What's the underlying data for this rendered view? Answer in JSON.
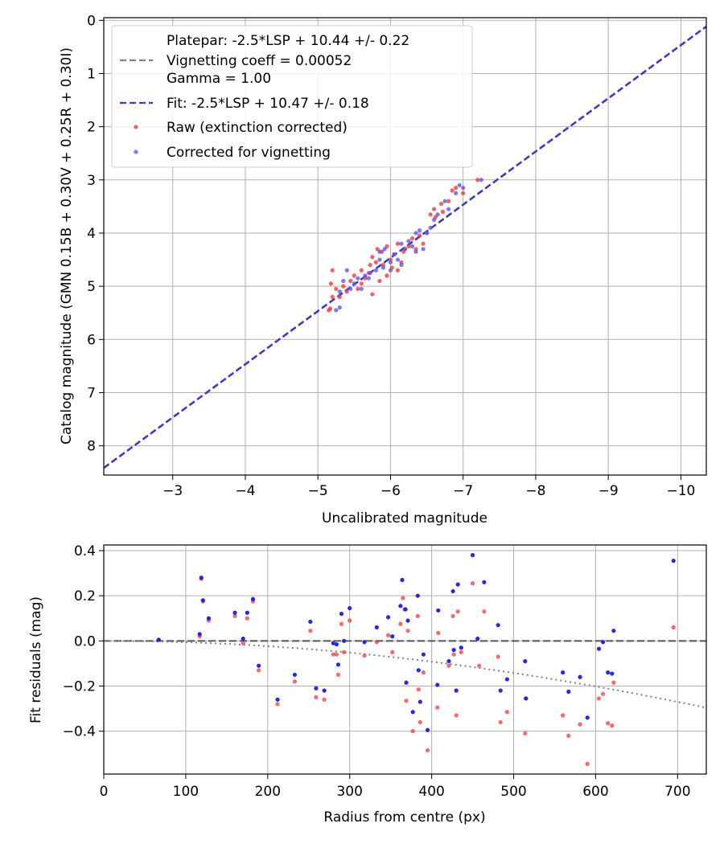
{
  "chart_data": [
    {
      "type": "scatter",
      "xlabel": "Uncalibrated magnitude",
      "ylabel": "Catalog magnitude (GMN 0.15B + 0.30V + 0.25R + 0.30I)",
      "xlim": [
        -2.05,
        -10.35
      ],
      "ylim": [
        -0.05,
        8.55
      ],
      "x_inverted": true,
      "y_inverted": true,
      "grid": true,
      "legend_position": "top-left",
      "xticks": [
        -3,
        -4,
        -5,
        -6,
        -7,
        -8,
        -9,
        -10
      ],
      "xtick_labels": [
        "−3",
        "−4",
        "−5",
        "−6",
        "−7",
        "−8",
        "−9",
        "−10"
      ],
      "yticks": [
        0,
        1,
        2,
        3,
        4,
        5,
        6,
        7,
        8
      ],
      "ytick_labels": [
        "0",
        "1",
        "2",
        "3",
        "4",
        "5",
        "6",
        "7",
        "8"
      ],
      "legend": [
        {
          "label": "Platepar: -2.5*LSP + 10.44 +/- 0.22",
          "style": "none"
        },
        {
          "label": "Vignetting coeff = 0.00052",
          "style": "dashed",
          "color": "#808080"
        },
        {
          "label": "Gamma = 1.00",
          "style": "none"
        },
        {
          "label": "Fit: -2.5*LSP + 10.47 +/- 0.18",
          "style": "dashed",
          "color": "#3333ff"
        },
        {
          "label": "Raw (extinction corrected)",
          "style": "marker",
          "color": "#ff3333"
        },
        {
          "label": "Corrected for vignetting",
          "style": "marker",
          "color": "#5555ff"
        }
      ],
      "lines": [
        {
          "name": "Platepar",
          "x": [
            -2.05,
            -10.35
          ],
          "y": [
            8.41,
            0.11
          ],
          "color": "#808080",
          "dash": true
        },
        {
          "name": "Fit",
          "x": [
            -2.05,
            -10.35
          ],
          "y": [
            8.42,
            0.12
          ],
          "color": "#2222ee",
          "dash": true
        }
      ],
      "series": [
        {
          "name": "Raw (extinction corrected)",
          "color": "#ff3333",
          "points": [
            [
              -5.15,
              5.45
            ],
            [
              -5.17,
              5.42
            ],
            [
              -5.2,
              5.2
            ],
            [
              -5.18,
              4.95
            ],
            [
              -5.2,
              4.7
            ],
            [
              -5.25,
              5.05
            ],
            [
              -5.3,
              5.2
            ],
            [
              -5.35,
              5.0
            ],
            [
              -5.4,
              5.1
            ],
            [
              -5.45,
              4.9
            ],
            [
              -5.5,
              4.8
            ],
            [
              -5.55,
              5.05
            ],
            [
              -5.6,
              4.95
            ],
            [
              -5.6,
              4.7
            ],
            [
              -5.65,
              4.85
            ],
            [
              -5.7,
              4.75
            ],
            [
              -5.72,
              4.6
            ],
            [
              -5.75,
              4.45
            ],
            [
              -5.75,
              5.15
            ],
            [
              -5.8,
              4.55
            ],
            [
              -5.82,
              4.3
            ],
            [
              -5.85,
              4.9
            ],
            [
              -5.88,
              4.35
            ],
            [
              -5.9,
              4.6
            ],
            [
              -5.95,
              4.25
            ],
            [
              -5.95,
              4.8
            ],
            [
              -6.0,
              4.5
            ],
            [
              -6.02,
              4.65
            ],
            [
              -6.05,
              4.4
            ],
            [
              -6.1,
              4.7
            ],
            [
              -6.1,
              4.2
            ],
            [
              -6.15,
              4.55
            ],
            [
              -6.18,
              4.35
            ],
            [
              -6.2,
              4.3
            ],
            [
              -6.25,
              4.25
            ],
            [
              -6.3,
              4.1
            ],
            [
              -6.35,
              4.3
            ],
            [
              -6.4,
              4.05
            ],
            [
              -6.45,
              4.2
            ],
            [
              -6.5,
              4.0
            ],
            [
              -6.55,
              3.65
            ],
            [
              -6.6,
              3.55
            ],
            [
              -6.62,
              3.7
            ],
            [
              -6.7,
              3.45
            ],
            [
              -6.72,
              3.6
            ],
            [
              -6.8,
              3.4
            ],
            [
              -6.85,
              3.2
            ],
            [
              -6.9,
              3.15
            ],
            [
              -7.0,
              3.25
            ],
            [
              -7.2,
              3.0
            ]
          ]
        },
        {
          "name": "Corrected for vignetting",
          "color": "#5555ff",
          "points": [
            [
              -5.25,
              5.45
            ],
            [
              -5.3,
              5.4
            ],
            [
              -5.3,
              5.1
            ],
            [
              -5.35,
              4.9
            ],
            [
              -5.4,
              4.7
            ],
            [
              -5.45,
              5.05
            ],
            [
              -5.5,
              4.95
            ],
            [
              -5.55,
              4.85
            ],
            [
              -5.6,
              5.05
            ],
            [
              -5.65,
              4.8
            ],
            [
              -5.7,
              4.85
            ],
            [
              -5.72,
              4.75
            ],
            [
              -5.8,
              4.7
            ],
            [
              -5.85,
              4.5
            ],
            [
              -5.85,
              4.35
            ],
            [
              -5.9,
              4.65
            ],
            [
              -5.92,
              4.3
            ],
            [
              -6.0,
              4.55
            ],
            [
              -6.0,
              4.7
            ],
            [
              -6.05,
              4.4
            ],
            [
              -6.1,
              4.5
            ],
            [
              -6.15,
              4.2
            ],
            [
              -6.15,
              4.6
            ],
            [
              -6.2,
              4.3
            ],
            [
              -6.25,
              4.15
            ],
            [
              -6.3,
              4.25
            ],
            [
              -6.35,
              4.35
            ],
            [
              -6.35,
              4.0
            ],
            [
              -6.4,
              3.95
            ],
            [
              -6.45,
              4.3
            ],
            [
              -6.5,
              4.0
            ],
            [
              -6.55,
              3.9
            ],
            [
              -6.6,
              3.75
            ],
            [
              -6.65,
              3.65
            ],
            [
              -6.75,
              3.4
            ],
            [
              -6.8,
              3.55
            ],
            [
              -6.9,
              3.25
            ],
            [
              -6.95,
              3.1
            ],
            [
              -7.0,
              3.15
            ],
            [
              -7.25,
              3.0
            ]
          ]
        }
      ]
    },
    {
      "type": "scatter",
      "xlabel": "Radius from centre (px)",
      "ylabel": "Fit residuals (mag)",
      "xlim": [
        0,
        735
      ],
      "ylim": [
        -0.59,
        0.425
      ],
      "grid": true,
      "xticks": [
        0,
        100,
        200,
        300,
        400,
        500,
        600,
        700
      ],
      "xtick_labels": [
        "0",
        "100",
        "200",
        "300",
        "400",
        "500",
        "600",
        "700"
      ],
      "yticks": [
        -0.4,
        -0.2,
        0.0,
        0.2,
        0.4
      ],
      "ytick_labels": [
        "−0.4",
        "−0.2",
        "0.0",
        "0.2",
        "0.4"
      ],
      "reference_lines": [
        {
          "name": "zero",
          "y": 0.0,
          "color": "#555555",
          "dash": "dashed"
        },
        {
          "name": "vignetting",
          "vignetting_coeff": 0.00052,
          "color": "#808080",
          "dash": "dotted"
        }
      ],
      "series": [
        {
          "name": "Raw (extinction corrected)",
          "color": "#ff3333",
          "points": [
            [
              67,
              0.005
            ],
            [
              117,
              0.02
            ],
            [
              119,
              0.275
            ],
            [
              121,
              0.175
            ],
            [
              128,
              0.09
            ],
            [
              160,
              0.11
            ],
            [
              170,
              -0.01
            ],
            [
              175,
              0.1
            ],
            [
              182,
              0.175
            ],
            [
              189,
              -0.13
            ],
            [
              212,
              -0.28
            ],
            [
              233,
              -0.18
            ],
            [
              252,
              0.045
            ],
            [
              259,
              -0.25
            ],
            [
              269,
              -0.26
            ],
            [
              280,
              -0.06
            ],
            [
              284,
              -0.06
            ],
            [
              286,
              -0.15
            ],
            [
              290,
              0.075
            ],
            [
              293,
              -0.05
            ],
            [
              300,
              0.09
            ],
            [
              318,
              -0.065
            ],
            [
              333,
              -0.005
            ],
            [
              347,
              0.025
            ],
            [
              352,
              -0.05
            ],
            [
              362,
              0.075
            ],
            [
              365,
              0.19
            ],
            [
              367,
              0.14
            ],
            [
              369,
              -0.265
            ],
            [
              371,
              0.045
            ],
            [
              377,
              -0.4
            ],
            [
              383,
              0.11
            ],
            [
              384,
              -0.215
            ],
            [
              386,
              -0.36
            ],
            [
              390,
              -0.14
            ],
            [
              395,
              -0.485
            ],
            [
              407,
              -0.295
            ],
            [
              408,
              0.035
            ],
            [
              421,
              -0.11
            ],
            [
              426,
              0.11
            ],
            [
              427,
              -0.06
            ],
            [
              430,
              -0.33
            ],
            [
              432,
              0.13
            ],
            [
              436,
              -0.05
            ],
            [
              450,
              0.255
            ],
            [
              458,
              -0.11
            ],
            [
              464,
              0.13
            ],
            [
              481,
              -0.07
            ],
            [
              484,
              -0.36
            ],
            [
              492,
              -0.315
            ],
            [
              514,
              -0.41
            ],
            [
              515,
              -0.255
            ],
            [
              560,
              -0.33
            ],
            [
              567,
              -0.42
            ],
            [
              581,
              -0.37
            ],
            [
              590,
              -0.545
            ],
            [
              604,
              -0.255
            ],
            [
              609,
              -0.235
            ],
            [
              615,
              -0.365
            ],
            [
              620,
              -0.375
            ],
            [
              622,
              -0.185
            ],
            [
              695,
              0.06
            ]
          ]
        },
        {
          "name": "Corrected for vignetting",
          "color": "#1a1aee",
          "points": [
            [
              67,
              0.005
            ],
            [
              117,
              0.03
            ],
            [
              119,
              0.28
            ],
            [
              121,
              0.18
            ],
            [
              128,
              0.1
            ],
            [
              160,
              0.125
            ],
            [
              170,
              0.01
            ],
            [
              175,
              0.125
            ],
            [
              182,
              0.185
            ],
            [
              189,
              -0.11
            ],
            [
              212,
              -0.26
            ],
            [
              233,
              -0.15
            ],
            [
              252,
              0.085
            ],
            [
              259,
              -0.21
            ],
            [
              269,
              -0.22
            ],
            [
              280,
              -0.01
            ],
            [
              284,
              -0.015
            ],
            [
              286,
              -0.105
            ],
            [
              290,
              0.12
            ],
            [
              293,
              0.0
            ],
            [
              300,
              0.145
            ],
            [
              318,
              -0.005
            ],
            [
              333,
              0.06
            ],
            [
              347,
              0.105
            ],
            [
              352,
              0.02
            ],
            [
              362,
              0.155
            ],
            [
              364,
              0.27
            ],
            [
              368,
              0.14
            ],
            [
              369,
              -0.185
            ],
            [
              371,
              0.09
            ],
            [
              377,
              -0.315
            ],
            [
              383,
              0.2
            ],
            [
              384,
              -0.13
            ],
            [
              386,
              -0.27
            ],
            [
              390,
              -0.06
            ],
            [
              395,
              -0.395
            ],
            [
              407,
              -0.195
            ],
            [
              408,
              0.135
            ],
            [
              421,
              -0.09
            ],
            [
              426,
              0.22
            ],
            [
              427,
              -0.04
            ],
            [
              430,
              -0.22
            ],
            [
              432,
              0.25
            ],
            [
              436,
              -0.03
            ],
            [
              450,
              0.38
            ],
            [
              456,
              0.01
            ],
            [
              464,
              0.26
            ],
            [
              481,
              0.07
            ],
            [
              484,
              -0.22
            ],
            [
              492,
              -0.17
            ],
            [
              514,
              -0.09
            ],
            [
              515,
              -0.255
            ],
            [
              560,
              -0.14
            ],
            [
              567,
              -0.225
            ],
            [
              581,
              -0.16
            ],
            [
              590,
              -0.34
            ],
            [
              604,
              -0.035
            ],
            [
              609,
              -0.005
            ],
            [
              615,
              -0.14
            ],
            [
              620,
              -0.145
            ],
            [
              622,
              0.045
            ],
            [
              695,
              0.355
            ]
          ]
        }
      ]
    }
  ]
}
